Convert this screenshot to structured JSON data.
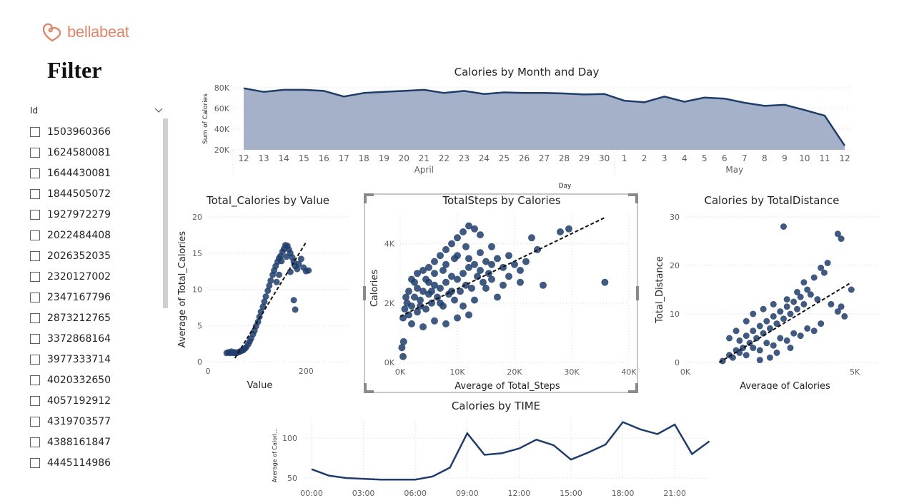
{
  "logo": {
    "text": "bellabeat",
    "icon": "heart-loop-icon"
  },
  "filter": {
    "title": "Filter",
    "field_label": "Id",
    "ids": [
      "1503960366",
      "1624580081",
      "1644430081",
      "1844505072",
      "1927972279",
      "2022484408",
      "2026352035",
      "2320127002",
      "2347167796",
      "2873212765",
      "3372868164",
      "3977333714",
      "4020332650",
      "4057192912",
      "4319703577",
      "4388161847",
      "4445114986"
    ]
  },
  "colors": {
    "series": "#1f3d6b",
    "area_fill": "#a5b1c8",
    "grid": "#d4d4d4",
    "accent_logo": "#e0866b"
  },
  "chart_data": [
    {
      "id": "calories_month_day",
      "type": "area",
      "title": "Calories by Month and Day",
      "xlabel": "Day",
      "ylabel": "Sum of Calories",
      "months": [
        {
          "name": "April",
          "start": 12,
          "end": 30
        },
        {
          "name": "May",
          "start": 1,
          "end": 12
        }
      ],
      "categories": [
        "12",
        "13",
        "14",
        "15",
        "16",
        "17",
        "18",
        "19",
        "20",
        "21",
        "22",
        "23",
        "24",
        "25",
        "26",
        "27",
        "28",
        "29",
        "30",
        "1",
        "2",
        "3",
        "4",
        "5",
        "6",
        "7",
        "8",
        "9",
        "10",
        "11",
        "12"
      ],
      "values": [
        79500,
        76000,
        78000,
        78000,
        77000,
        71500,
        75000,
        76000,
        77000,
        78000,
        75000,
        77000,
        74000,
        75500,
        75000,
        75000,
        74500,
        73500,
        74000,
        67500,
        66000,
        71500,
        66500,
        70500,
        69500,
        65500,
        62500,
        63500,
        58500,
        53000,
        24000
      ],
      "yticks": [
        {
          "v": 20000,
          "label": "20K"
        },
        {
          "v": 40000,
          "label": "40K"
        },
        {
          "v": 60000,
          "label": "60K"
        },
        {
          "v": 80000,
          "label": "80K"
        }
      ],
      "ylim": [
        20000,
        80000
      ]
    },
    {
      "id": "total_calories_by_value",
      "type": "scatter",
      "title": "Total_Calories by Value",
      "xlabel": "Value",
      "ylabel": "Average of Total_Calories",
      "xticks": [
        {
          "v": 0,
          "label": "0"
        },
        {
          "v": 200,
          "label": "200"
        }
      ],
      "yticks": [
        {
          "v": 0,
          "label": "0"
        },
        {
          "v": 5,
          "label": "5"
        },
        {
          "v": 10,
          "label": "10"
        },
        {
          "v": 15,
          "label": "15"
        },
        {
          "v": 20,
          "label": "20"
        }
      ],
      "xlim": [
        0,
        290
      ],
      "ylim": [
        0,
        20
      ],
      "trend": [
        [
          55,
          0.5
        ],
        [
          200,
          16.5
        ]
      ],
      "points": [
        [
          38,
          1.2
        ],
        [
          42,
          1.3
        ],
        [
          45,
          1.2
        ],
        [
          48,
          1.4
        ],
        [
          52,
          1.2
        ],
        [
          55,
          1.3
        ],
        [
          58,
          1.2
        ],
        [
          62,
          1.3
        ],
        [
          65,
          1.4
        ],
        [
          68,
          1.5
        ],
        [
          72,
          1.6
        ],
        [
          75,
          1.8
        ],
        [
          78,
          2.0
        ],
        [
          82,
          2.4
        ],
        [
          85,
          2.8
        ],
        [
          88,
          3.2
        ],
        [
          92,
          3.8
        ],
        [
          95,
          4.3
        ],
        [
          98,
          4.9
        ],
        [
          102,
          5.5
        ],
        [
          105,
          6.2
        ],
        [
          108,
          6.9
        ],
        [
          112,
          7.6
        ],
        [
          115,
          8.3
        ],
        [
          118,
          9.0
        ],
        [
          122,
          9.8
        ],
        [
          125,
          10.5
        ],
        [
          128,
          11.2
        ],
        [
          132,
          12.0
        ],
        [
          135,
          12.6
        ],
        [
          138,
          13.2
        ],
        [
          142,
          13.8
        ],
        [
          145,
          14.3
        ],
        [
          148,
          14.6
        ],
        [
          152,
          15.2
        ],
        [
          155,
          15.6
        ],
        [
          158,
          16.1
        ],
        [
          162,
          16.0
        ],
        [
          165,
          15.5
        ],
        [
          168,
          15.0
        ],
        [
          172,
          14.4
        ],
        [
          175,
          13.8
        ],
        [
          178,
          13.2
        ],
        [
          182,
          12.8
        ],
        [
          185,
          13.5
        ],
        [
          190,
          14.2
        ],
        [
          195,
          13.0
        ],
        [
          200,
          12.5
        ],
        [
          205,
          12.6
        ],
        [
          175,
          8.5
        ],
        [
          178,
          7.2
        ],
        [
          168,
          12.4
        ],
        [
          160,
          14.5
        ],
        [
          150,
          13.9
        ],
        [
          145,
          12.0
        ],
        [
          140,
          11.0
        ]
      ]
    },
    {
      "id": "totalsteps_by_calories",
      "type": "scatter",
      "title": "TotalSteps by Calories",
      "xlabel": "Average of Total_Steps",
      "ylabel": "Calories",
      "xticks": [
        {
          "v": 0,
          "label": "0K"
        },
        {
          "v": 10000,
          "label": "10K"
        },
        {
          "v": 20000,
          "label": "20K"
        },
        {
          "v": 30000,
          "label": "30K"
        },
        {
          "v": 40000,
          "label": "40K"
        }
      ],
      "yticks": [
        {
          "v": 0,
          "label": "0K"
        },
        {
          "v": 2000,
          "label": "2K"
        },
        {
          "v": 4000,
          "label": "4K"
        }
      ],
      "xlim": [
        0,
        40000
      ],
      "ylim": [
        0,
        5000
      ],
      "trend": [
        [
          0,
          1550
        ],
        [
          36000,
          4900
        ]
      ],
      "points": [
        [
          500,
          1500
        ],
        [
          800,
          1800
        ],
        [
          1200,
          2000
        ],
        [
          1500,
          1600
        ],
        [
          2000,
          1900
        ],
        [
          2500,
          2200
        ],
        [
          3000,
          1700
        ],
        [
          3500,
          2100
        ],
        [
          4000,
          2400
        ],
        [
          4500,
          1800
        ],
        [
          5000,
          2300
        ],
        [
          5500,
          2000
        ],
        [
          6000,
          2600
        ],
        [
          6500,
          2200
        ],
        [
          7000,
          2500
        ],
        [
          7500,
          1900
        ],
        [
          8000,
          2700
        ],
        [
          8500,
          2300
        ],
        [
          9000,
          2900
        ],
        [
          9500,
          2100
        ],
        [
          10000,
          2800
        ],
        [
          10500,
          2400
        ],
        [
          11000,
          3000
        ],
        [
          11500,
          2600
        ],
        [
          12000,
          3200
        ],
        [
          12500,
          2500
        ],
        [
          13000,
          3300
        ],
        [
          13500,
          2900
        ],
        [
          14000,
          3100
        ],
        [
          14500,
          2700
        ],
        [
          15000,
          3400
        ],
        [
          15500,
          3000
        ],
        [
          16000,
          2800
        ],
        [
          17000,
          3500
        ],
        [
          18000,
          3200
        ],
        [
          19000,
          3600
        ],
        [
          20000,
          3300
        ],
        [
          21000,
          3100
        ],
        [
          22000,
          3400
        ],
        [
          23000,
          4200
        ],
        [
          24000,
          3800
        ],
        [
          25000,
          2600
        ],
        [
          28000,
          4400
        ],
        [
          29500,
          4500
        ],
        [
          35800,
          2700
        ],
        [
          2000,
          2800
        ],
        [
          3000,
          3000
        ],
        [
          4000,
          3100
        ],
        [
          5000,
          3200
        ],
        [
          6000,
          3400
        ],
        [
          7000,
          3600
        ],
        [
          8000,
          3800
        ],
        [
          9000,
          4000
        ],
        [
          10000,
          4200
        ],
        [
          11000,
          4400
        ],
        [
          12000,
          4600
        ],
        [
          13000,
          4500
        ],
        [
          14000,
          4300
        ],
        [
          6000,
          1400
        ],
        [
          8000,
          1300
        ],
        [
          10000,
          1500
        ],
        [
          12000,
          1600
        ],
        [
          4000,
          1200
        ],
        [
          2000,
          1300
        ],
        [
          500,
          200
        ],
        [
          300,
          500
        ],
        [
          600,
          700
        ],
        [
          16000,
          3900
        ],
        [
          17000,
          2200
        ],
        [
          18000,
          2600
        ],
        [
          19000,
          2900
        ],
        [
          21000,
          2700
        ],
        [
          5000,
          2700
        ],
        [
          7000,
          2000
        ],
        [
          9000,
          2400
        ],
        [
          11000,
          1900
        ],
        [
          13000,
          2100
        ],
        [
          15000,
          2500
        ],
        [
          3000,
          2500
        ],
        [
          1000,
          2200
        ],
        [
          8000,
          3300
        ],
        [
          12000,
          3500
        ],
        [
          14000,
          3700
        ],
        [
          16000,
          3300
        ],
        [
          6000,
          3000
        ],
        [
          4500,
          2800
        ],
        [
          10000,
          3600
        ],
        [
          11500,
          3900
        ],
        [
          9500,
          3500
        ],
        [
          7500,
          3100
        ],
        [
          5500,
          2400
        ],
        [
          3500,
          1900
        ],
        [
          1500,
          2400
        ],
        [
          2500,
          2700
        ]
      ]
    },
    {
      "id": "calories_by_totaldistance",
      "type": "scatter",
      "title": "Calories by TotalDistance",
      "xlabel": "Average of Calories",
      "ylabel": "Total_Distance",
      "xticks": [
        {
          "v": 0,
          "label": "0K"
        },
        {
          "v": 5000,
          "label": "5K"
        }
      ],
      "yticks": [
        {
          "v": 0,
          "label": "0"
        },
        {
          "v": 10,
          "label": "10"
        },
        {
          "v": 20,
          "label": "20"
        },
        {
          "v": 30,
          "label": "30"
        }
      ],
      "xlim": [
        0,
        5800
      ],
      "ylim": [
        0,
        30
      ],
      "trend": [
        [
          1000,
          0
        ],
        [
          4900,
          16.5
        ]
      ],
      "points": [
        [
          1100,
          0.3
        ],
        [
          1300,
          1.5
        ],
        [
          1500,
          2.5
        ],
        [
          1600,
          4.5
        ],
        [
          1700,
          3.0
        ],
        [
          1800,
          5.5
        ],
        [
          1900,
          4.0
        ],
        [
          2000,
          6.5
        ],
        [
          2100,
          5.0
        ],
        [
          2200,
          7.5
        ],
        [
          2300,
          6.0
        ],
        [
          2400,
          8.5
        ],
        [
          2500,
          7.0
        ],
        [
          2600,
          9.5
        ],
        [
          2700,
          8.0
        ],
        [
          2800,
          10.5
        ],
        [
          2900,
          9.0
        ],
        [
          3000,
          11.5
        ],
        [
          3100,
          10.0
        ],
        [
          3200,
          12.5
        ],
        [
          3300,
          11.0
        ],
        [
          3400,
          13.5
        ],
        [
          3500,
          12.0
        ],
        [
          3600,
          15.0
        ],
        [
          3700,
          14.0
        ],
        [
          3800,
          17.5
        ],
        [
          3900,
          13.0
        ],
        [
          4000,
          19.5
        ],
        [
          4100,
          18.5
        ],
        [
          4200,
          20.5
        ],
        [
          4300,
          12.0
        ],
        [
          4500,
          10.5
        ],
        [
          4600,
          11.5
        ],
        [
          4700,
          9.5
        ],
        [
          4900,
          15.0
        ],
        [
          4600,
          25.5
        ],
        [
          4500,
          26.5
        ],
        [
          2900,
          28.0
        ],
        [
          1400,
          1.0
        ],
        [
          1600,
          2.0
        ],
        [
          1800,
          1.5
        ],
        [
          2000,
          3.0
        ],
        [
          2200,
          2.5
        ],
        [
          2400,
          4.0
        ],
        [
          2600,
          3.5
        ],
        [
          2800,
          5.0
        ],
        [
          3000,
          4.5
        ],
        [
          3200,
          6.0
        ],
        [
          3400,
          5.5
        ],
        [
          3600,
          7.0
        ],
        [
          3800,
          6.5
        ],
        [
          4000,
          8.0
        ],
        [
          3300,
          14.5
        ],
        [
          3000,
          13.0
        ],
        [
          2600,
          12.0
        ],
        [
          2300,
          11.0
        ],
        [
          2000,
          10.0
        ],
        [
          1800,
          8.5
        ],
        [
          1500,
          6.5
        ],
        [
          1300,
          5.0
        ],
        [
          3500,
          16.5
        ],
        [
          3100,
          3.0
        ],
        [
          2700,
          2.0
        ],
        [
          2500,
          1.0
        ],
        [
          2200,
          0.5
        ]
      ]
    },
    {
      "id": "calories_by_time",
      "type": "line",
      "title": "Calories by TIME",
      "xlabel": "",
      "ylabel": "Average of Calori...",
      "categories": [
        "00:00",
        "01:00",
        "02:00",
        "03:00",
        "04:00",
        "05:00",
        "06:00",
        "07:00",
        "08:00",
        "09:00",
        "10:00",
        "11:00",
        "12:00",
        "13:00",
        "14:00",
        "15:00",
        "16:00",
        "17:00",
        "18:00",
        "19:00",
        "20:00",
        "21:00",
        "22:00",
        "23:00"
      ],
      "values": [
        61,
        53,
        50,
        49,
        48,
        48,
        48,
        52,
        63,
        106,
        79,
        81,
        87,
        98,
        91,
        73,
        82,
        92,
        120,
        111,
        105,
        117,
        80,
        96
      ],
      "xtick_labels": [
        "00:00",
        "03:00",
        "06:00",
        "09:00",
        "12:00",
        "15:00",
        "18:00",
        "21:00"
      ],
      "yticks": [
        {
          "v": 50,
          "label": "50"
        },
        {
          "v": 100,
          "label": "100"
        }
      ],
      "ylim": [
        48,
        122
      ]
    }
  ]
}
